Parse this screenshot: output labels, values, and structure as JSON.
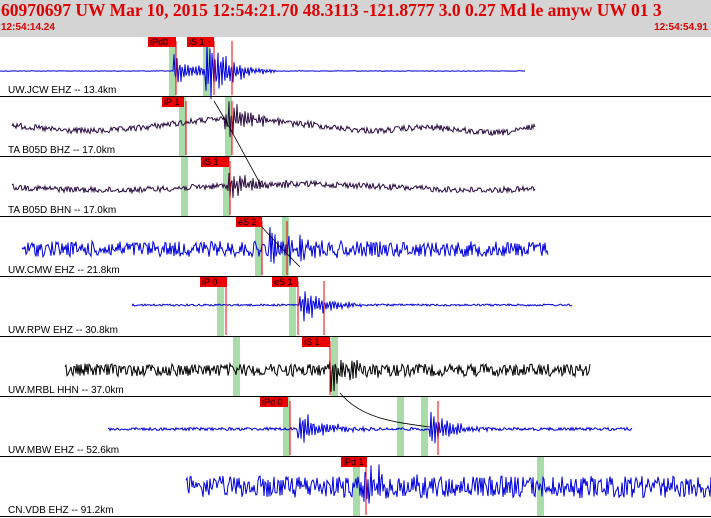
{
  "header": {
    "title": "60970697 UW Mar 10, 2015 12:54:21.70    48.3113 -121.8777  3.0 0.27 Md le amyw UW 01    3",
    "start_time": "12:54:14.24",
    "end_time": "12:54:54.91"
  },
  "colors": {
    "header_bg": "#d4d4d4",
    "header_text": "#e00000",
    "pick_red": "#ee0000",
    "theoretical_green": "#a8dca8",
    "trace_blue": "#0000dd",
    "trace_dark": "#2a0a40",
    "trace_black": "#000000"
  },
  "channels": [
    {
      "label": "UW.JCW EHZ -- 13.4km",
      "trace_color": "#0000dd",
      "picks": [
        {
          "label": "iPd0"
        },
        {
          "label": "iS 1"
        }
      ]
    },
    {
      "label": "TA B05D BHZ -- 17.0km",
      "trace_color": "#2a0a40",
      "picks": [
        {
          "label": "iP 1"
        }
      ]
    },
    {
      "label": "TA B05D BHN -- 17.0km",
      "trace_color": "#2a0a40",
      "picks": [
        {
          "label": "iS 1"
        }
      ]
    },
    {
      "label": "UW.CMW EHZ -- 21.8km",
      "trace_color": "#0000dd",
      "picks": [
        {
          "label": "eS 2"
        }
      ]
    },
    {
      "label": "UW.RPW EHZ -- 30.8km",
      "trace_color": "#0000dd",
      "picks": [
        {
          "label": "iP 0"
        },
        {
          "label": "eS 1"
        }
      ]
    },
    {
      "label": "UW.MRBL HHN -- 37.0km",
      "trace_color": "#000000",
      "picks": [
        {
          "label": "iS 1"
        }
      ]
    },
    {
      "label": "UW.MBW EHZ -- 52.6km",
      "trace_color": "#0000dd",
      "picks": [
        {
          "label": "iPd 0"
        }
      ]
    },
    {
      "label": "CN.VDB EHZ -- 91.2km",
      "trace_color": "#0000dd",
      "picks": [
        {
          "label": "iPd 1"
        }
      ]
    }
  ]
}
